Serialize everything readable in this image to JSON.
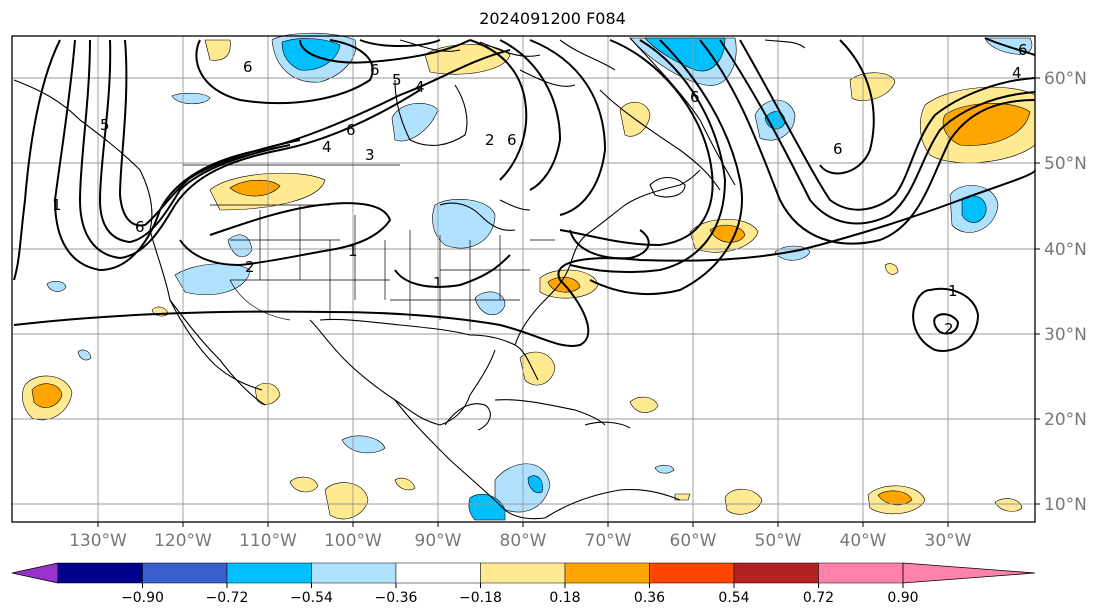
{
  "title": "2024091200 F084",
  "lon_labels": [
    "130°W",
    "120°W",
    "110°W",
    "100°W",
    "90°W",
    "80°W",
    "70°W",
    "60°W",
    "50°W",
    "40°W",
    "30°W"
  ],
  "lat_labels": [
    "60°N",
    "50°N",
    "40°N",
    "30°N",
    "20°N",
    "10°N"
  ],
  "colorbar": {
    "ticks": [
      "−0.90",
      "−0.72",
      "−0.54",
      "−0.36",
      "−0.18",
      "0.18",
      "0.36",
      "0.54",
      "0.72",
      "0.90"
    ],
    "colors": [
      "#9932cc",
      "#00008b",
      "#3a5fcd",
      "#00bfff",
      "#b0e2ff",
      "#ffffff",
      "#ffe991",
      "#ffa500",
      "#ff4500",
      "#b22222",
      "#ff82ab"
    ]
  },
  "contour_labels": [
    "1",
    "1",
    "1",
    "1",
    "2",
    "2",
    "2",
    "3",
    "4",
    "4",
    "4",
    "5",
    "6",
    "6",
    "6",
    "6",
    "6",
    "6",
    "6",
    "5",
    "6"
  ]
}
